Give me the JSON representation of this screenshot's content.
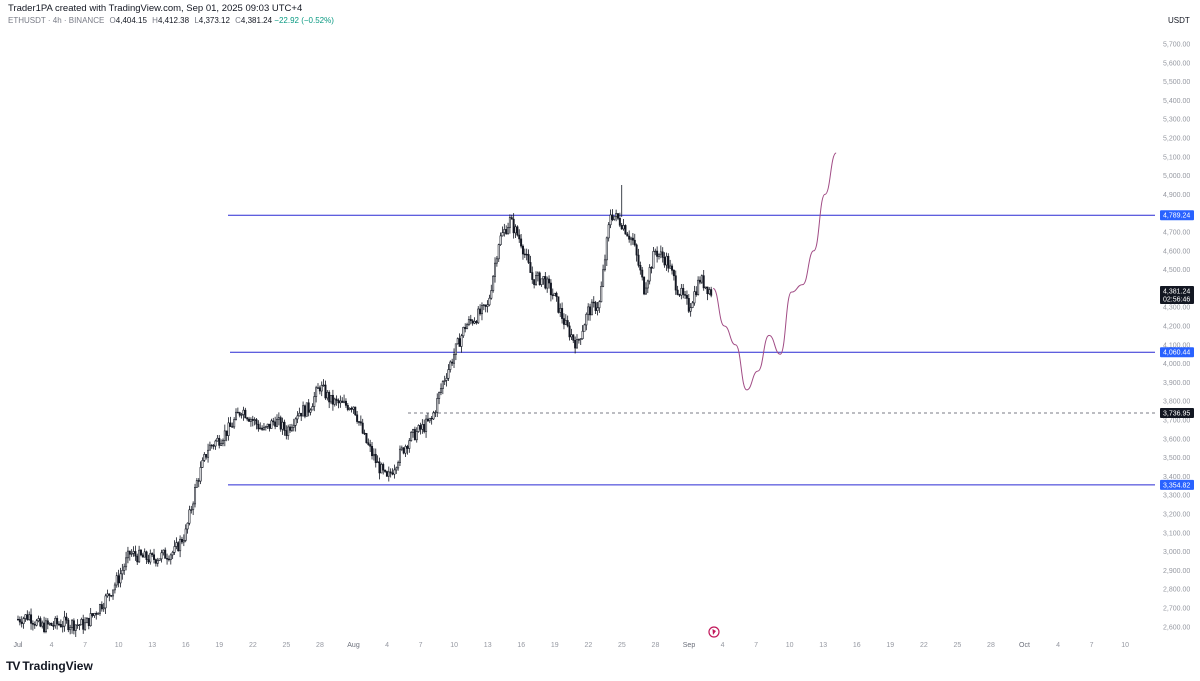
{
  "header": {
    "title": "Trader1PA created with TradingView.com, Sep 01, 2025 09:03 UTC+4"
  },
  "ohlc": {
    "symbol": "ETHUSDT · 4h · BINANCE",
    "open_label": "O",
    "open": "4,404.15",
    "high_label": "H",
    "high": "4,412.38",
    "low_label": "L",
    "low": "4,373.12",
    "close_label": "C",
    "close": "4,381.24",
    "change": "−22.92 (−0.52%)"
  },
  "currency": "USDT",
  "brand": {
    "mark": "TV",
    "name": "TradingView"
  },
  "colors": {
    "level_line": "#2a2ad4",
    "level_tag": "#2962ff",
    "projection": "#a14c85",
    "candle": "#131722",
    "dashed": "#787b86"
  },
  "chart_data": {
    "type": "candlestick",
    "symbol": "ETHUSDT",
    "timeframe": "4h",
    "exchange": "BINANCE",
    "ylim": [
      2600,
      5800
    ],
    "y_ticks": [
      "5,700.00",
      "5,600.00",
      "5,500.00",
      "5,400.00",
      "5,300.00",
      "5,200.00",
      "5,100.00",
      "5,000.00",
      "4,900.00",
      "4,800.00",
      "4,700.00",
      "4,600.00",
      "4,500.00",
      "4,400.00",
      "4,300.00",
      "4,200.00",
      "4,100.00",
      "4,000.00",
      "3,900.00",
      "3,800.00",
      "3,700.00",
      "3,600.00",
      "3,500.00",
      "3,400.00",
      "3,300.00",
      "3,200.00",
      "3,100.00",
      "3,000.00",
      "2,900.00",
      "2,800.00",
      "2,700.00",
      "2,600.00"
    ],
    "x_ticks": [
      {
        "label": "Jul",
        "bold": true
      },
      {
        "label": "4"
      },
      {
        "label": "7"
      },
      {
        "label": "10"
      },
      {
        "label": "13"
      },
      {
        "label": "16"
      },
      {
        "label": "19"
      },
      {
        "label": "22"
      },
      {
        "label": "25"
      },
      {
        "label": "28"
      },
      {
        "label": "Aug",
        "bold": true
      },
      {
        "label": "4"
      },
      {
        "label": "7"
      },
      {
        "label": "10"
      },
      {
        "label": "13"
      },
      {
        "label": "16"
      },
      {
        "label": "19"
      },
      {
        "label": "22"
      },
      {
        "label": "25"
      },
      {
        "label": "28"
      },
      {
        "label": "Sep",
        "bold": true
      },
      {
        "label": "4"
      },
      {
        "label": "7"
      },
      {
        "label": "10"
      },
      {
        "label": "13"
      },
      {
        "label": "16"
      },
      {
        "label": "19"
      },
      {
        "label": "22"
      },
      {
        "label": "25"
      },
      {
        "label": "28"
      },
      {
        "label": "Oct",
        "bold": true
      },
      {
        "label": "4"
      },
      {
        "label": "7"
      },
      {
        "label": "10"
      }
    ],
    "price_path": [
      [
        "Jul 1",
        2640
      ],
      [
        "Jul 2",
        2660
      ],
      [
        "Jul 3",
        2600
      ],
      [
        "Jul 5",
        2620
      ],
      [
        "Jul 7",
        2610
      ],
      [
        "Jul 9",
        2760
      ],
      [
        "Jul 10",
        2860
      ],
      [
        "Jul 11",
        2990
      ],
      [
        "Jul 12",
        2970
      ],
      [
        "Jul 13",
        2960
      ],
      [
        "Jul 14",
        2980
      ],
      [
        "Jul 15",
        3000
      ],
      [
        "Jul 16",
        3100
      ],
      [
        "Jul 17",
        3370
      ],
      [
        "Jul 18",
        3550
      ],
      [
        "Jul 19",
        3600
      ],
      [
        "Jul 20",
        3660
      ],
      [
        "Jul 21",
        3760
      ],
      [
        "Jul 22",
        3700
      ],
      [
        "Jul 23",
        3640
      ],
      [
        "Jul 24",
        3700
      ],
      [
        "Jul 25",
        3640
      ],
      [
        "Jul 26",
        3740
      ],
      [
        "Jul 27",
        3760
      ],
      [
        "Jul 28",
        3880
      ],
      [
        "Jul 29",
        3800
      ],
      [
        "Jul 30",
        3780
      ],
      [
        "Jul 31",
        3780
      ],
      [
        "Aug 1",
        3600
      ],
      [
        "Aug 2",
        3480
      ],
      [
        "Aug 3",
        3380
      ],
      [
        "Aug 4",
        3500
      ],
      [
        "Aug 5",
        3600
      ],
      [
        "Aug 6",
        3650
      ],
      [
        "Aug 7",
        3700
      ],
      [
        "Aug 8",
        3900
      ],
      [
        "Aug 9",
        4050
      ],
      [
        "Aug 10",
        4200
      ],
      [
        "Aug 11",
        4250
      ],
      [
        "Aug 12",
        4300
      ],
      [
        "Aug 13",
        4650
      ],
      [
        "Aug 14",
        4760
      ],
      [
        "Aug 15",
        4650
      ],
      [
        "Aug 16",
        4450
      ],
      [
        "Aug 17",
        4450
      ],
      [
        "Aug 18",
        4350
      ],
      [
        "Aug 19",
        4200
      ],
      [
        "Aug 20",
        4100
      ],
      [
        "Aug 21",
        4280
      ],
      [
        "Aug 22",
        4320
      ],
      [
        "Aug 23",
        4800
      ],
      [
        "Aug 24",
        4750
      ],
      [
        "Aug 25",
        4650
      ],
      [
        "Aug 26",
        4400
      ],
      [
        "Aug 27",
        4600
      ],
      [
        "Aug 28",
        4550
      ],
      [
        "Aug 29",
        4400
      ],
      [
        "Aug 30",
        4300
      ],
      [
        "Aug 31",
        4450
      ],
      [
        "Sep 1",
        4381
      ]
    ],
    "levels": [
      {
        "label": "4,789.24",
        "value": 4789.24,
        "style": "solid"
      },
      {
        "label": "4,060.44",
        "value": 4060.44,
        "style": "solid"
      },
      {
        "label": "3,736.95",
        "value": 3736.95,
        "style": "dashed"
      },
      {
        "label": "3,354.82",
        "value": 3354.82,
        "style": "solid"
      }
    ],
    "last_price": {
      "label": "4,381.24",
      "countdown": "02:56:46"
    },
    "projection": [
      [
        "Sep 1",
        4400
      ],
      [
        "Sep 2",
        4200
      ],
      [
        "Sep 3",
        4100
      ],
      [
        "Sep 4",
        3860
      ],
      [
        "Sep 5",
        3960
      ],
      [
        "Sep 6",
        4150
      ],
      [
        "Sep 7",
        4050
      ],
      [
        "Sep 8",
        4380
      ],
      [
        "Sep 9",
        4420
      ],
      [
        "Sep 10",
        4600
      ],
      [
        "Sep 11",
        4900
      ],
      [
        "Sep 12",
        5120
      ]
    ]
  }
}
